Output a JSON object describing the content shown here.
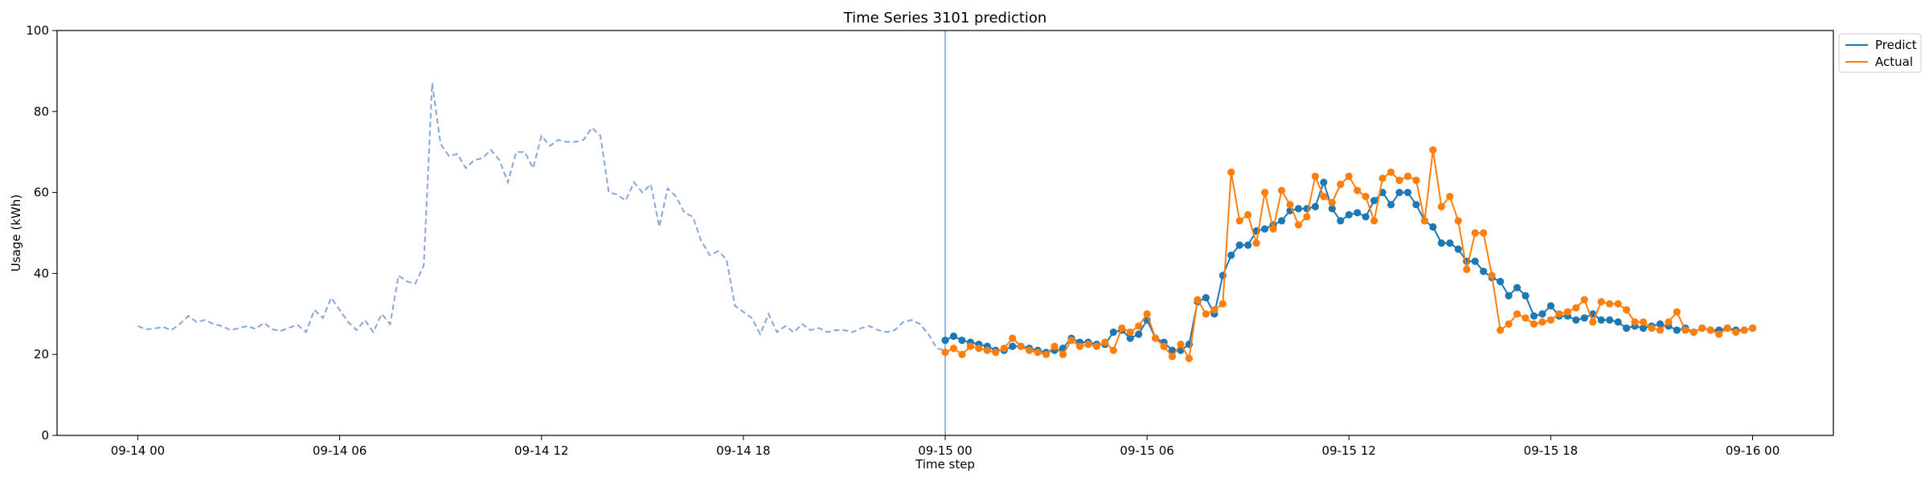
{
  "chart_data": {
    "type": "line",
    "title": "Time Series 3101 prediction",
    "xlabel": "Time step",
    "ylabel": "Usage (kWh)",
    "ylim": [
      0,
      100
    ],
    "xlim_hours": [
      -2.4,
      50.4
    ],
    "y_ticks": [
      0,
      20,
      40,
      60,
      80,
      100
    ],
    "x_ticks": [
      {
        "label": "09-14 00",
        "hour": 0
      },
      {
        "label": "09-14 06",
        "hour": 6
      },
      {
        "label": "09-14 12",
        "hour": 12
      },
      {
        "label": "09-14 18",
        "hour": 18
      },
      {
        "label": "09-15 00",
        "hour": 24
      },
      {
        "label": "09-15 06",
        "hour": 30
      },
      {
        "label": "09-15 12",
        "hour": 36
      },
      {
        "label": "09-15 18",
        "hour": 42
      },
      {
        "label": "09-16 00",
        "hour": 48
      }
    ],
    "forecast_start_hour": 24,
    "step_hours": 0.25,
    "grid": false,
    "legend_position": "outside top-right",
    "colors": {
      "history": "#88a7d8",
      "predict": "#1f77b4",
      "actual": "#ff7f0e",
      "divider": "#7f9fd6"
    },
    "history": {
      "x_start_hour": 0,
      "values": [
        27.0,
        26.2,
        26.4,
        26.8,
        26.0,
        27.5,
        29.5,
        28.0,
        28.5,
        27.5,
        27.0,
        26.0,
        26.5,
        27.0,
        26.3,
        27.8,
        26.2,
        25.8,
        26.6,
        27.3,
        25.5,
        31.0,
        29.0,
        34.0,
        31.0,
        28.0,
        26.0,
        28.5,
        25.5,
        30.0,
        27.5,
        39.5,
        38.0,
        37.5,
        42.0,
        87.0,
        72.0,
        69.0,
        69.5,
        66.0,
        68.0,
        68.5,
        70.5,
        68.0,
        62.5,
        70.0,
        70.0,
        66.0,
        74.0,
        71.5,
        73.0,
        72.5,
        72.5,
        73.0,
        76.0,
        74.0,
        60.0,
        59.5,
        58.0,
        62.5,
        60.0,
        62.0,
        51.5,
        61.0,
        59.0,
        55.0,
        54.0,
        48.0,
        44.5,
        45.5,
        43.5,
        32.0,
        30.5,
        29.0,
        25.0,
        30.0,
        25.5,
        27.0,
        25.5,
        27.5,
        26.0,
        26.5,
        25.5,
        26.0,
        26.0,
        25.5,
        26.5,
        27.0,
        26.0,
        25.5,
        26.0,
        28.0,
        28.5,
        27.5,
        25.0,
        21.5,
        21.0
      ]
    },
    "series": [
      {
        "name": "Predict",
        "x_start_hour": 24,
        "values": [
          23.5,
          24.5,
          23.5,
          23.0,
          22.5,
          22.0,
          21.0,
          21.0,
          22.0,
          22.0,
          21.5,
          21.0,
          20.5,
          21.0,
          21.5,
          24.0,
          23.0,
          23.0,
          22.5,
          22.5,
          25.5,
          26.0,
          24.0,
          25.0,
          28.5,
          24.0,
          23.0,
          21.0,
          21.0,
          22.5,
          33.0,
          34.0,
          30.0,
          39.5,
          44.5,
          47.0,
          47.0,
          50.5,
          51.0,
          52.0,
          53.0,
          55.5,
          56.0,
          56.0,
          56.5,
          62.5,
          56.0,
          53.0,
          54.5,
          55.0,
          54.0,
          58.0,
          60.0,
          57.0,
          60.0,
          60.0,
          57.0,
          53.0,
          51.5,
          47.5,
          47.5,
          46.0,
          43.0,
          43.0,
          40.5,
          39.0,
          38.0,
          34.5,
          36.5,
          34.5,
          29.5,
          30.0,
          32.0,
          29.5,
          29.5,
          28.5,
          29.0,
          30.0,
          28.5,
          28.5,
          28.0,
          26.5,
          27.0,
          26.5,
          27.0,
          27.5,
          27.0,
          26.0,
          26.5,
          25.5,
          26.5,
          26.0,
          26.0,
          26.5,
          26.0,
          26.0,
          26.5
        ]
      },
      {
        "name": "Actual",
        "x_start_hour": 24,
        "values": [
          20.5,
          21.5,
          20.0,
          22.0,
          21.5,
          21.0,
          20.5,
          21.5,
          24.0,
          22.0,
          21.0,
          20.5,
          20.0,
          22.0,
          20.0,
          23.5,
          22.0,
          22.5,
          22.0,
          23.0,
          21.0,
          26.5,
          25.5,
          27.0,
          30.0,
          24.0,
          22.0,
          19.5,
          22.5,
          19.0,
          33.5,
          30.0,
          31.0,
          32.5,
          65.0,
          53.0,
          54.5,
          47.5,
          60.0,
          51.0,
          60.5,
          57.0,
          52.0,
          54.0,
          64.0,
          59.0,
          57.5,
          62.0,
          64.0,
          60.5,
          59.0,
          53.0,
          63.5,
          65.0,
          63.0,
          64.0,
          63.0,
          53.0,
          70.5,
          56.5,
          59.0,
          53.0,
          41.0,
          50.0,
          50.0,
          39.5,
          26.0,
          27.5,
          30.0,
          29.0,
          27.5,
          28.0,
          28.5,
          30.0,
          30.5,
          31.5,
          33.5,
          28.0,
          33.0,
          32.5,
          32.5,
          31.0,
          28.0,
          28.0,
          26.5,
          26.0,
          28.0,
          30.5,
          26.0,
          25.5,
          26.5,
          26.0,
          25.0,
          26.5,
          25.5,
          26.0,
          26.5
        ]
      }
    ]
  }
}
